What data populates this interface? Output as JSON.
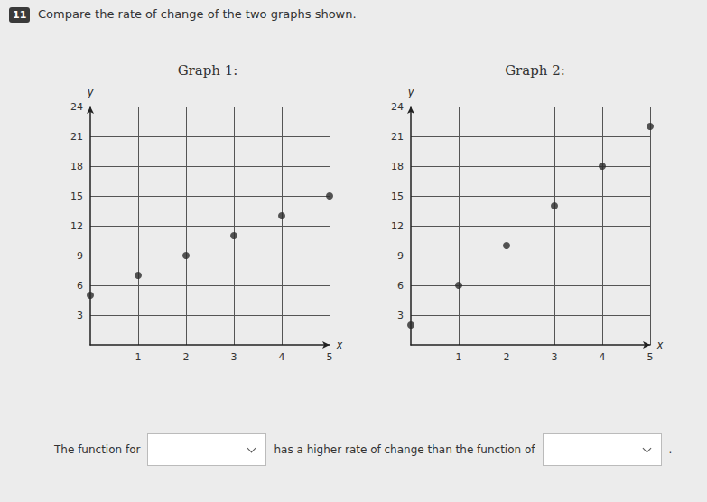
{
  "question": {
    "number": "11",
    "text": "Compare the rate of change of the two graphs shown."
  },
  "chart_data": [
    {
      "type": "scatter",
      "title": "Graph 1:",
      "x_label": "x",
      "y_label": "y",
      "x": [
        0,
        1,
        2,
        3,
        4,
        5
      ],
      "values": [
        5,
        7,
        9,
        11,
        13,
        15
      ],
      "xlim": [
        0,
        5
      ],
      "xticks": [
        1,
        2,
        3,
        4,
        5
      ],
      "ylim": [
        0,
        24
      ],
      "yticks": [
        3,
        6,
        9,
        12,
        15,
        18,
        21,
        24
      ],
      "grid": true,
      "color": "#2b2b2b",
      "marker": "circle"
    },
    {
      "type": "scatter",
      "title": "Graph 2:",
      "x_label": "x",
      "y_label": "y",
      "x": [
        0,
        1,
        2,
        3,
        4,
        5
      ],
      "values": [
        2,
        6,
        10,
        14,
        18,
        22
      ],
      "xlim": [
        0,
        5
      ],
      "xticks": [
        1,
        2,
        3,
        4,
        5
      ],
      "ylim": [
        0,
        24
      ],
      "yticks": [
        3,
        6,
        9,
        12,
        15,
        18,
        21,
        24
      ],
      "grid": true,
      "color": "#2b2b2b",
      "marker": "circle"
    }
  ],
  "answer_sentence": {
    "before": "The function for",
    "middle": "has a higher rate of change than the function of",
    "after": "."
  }
}
